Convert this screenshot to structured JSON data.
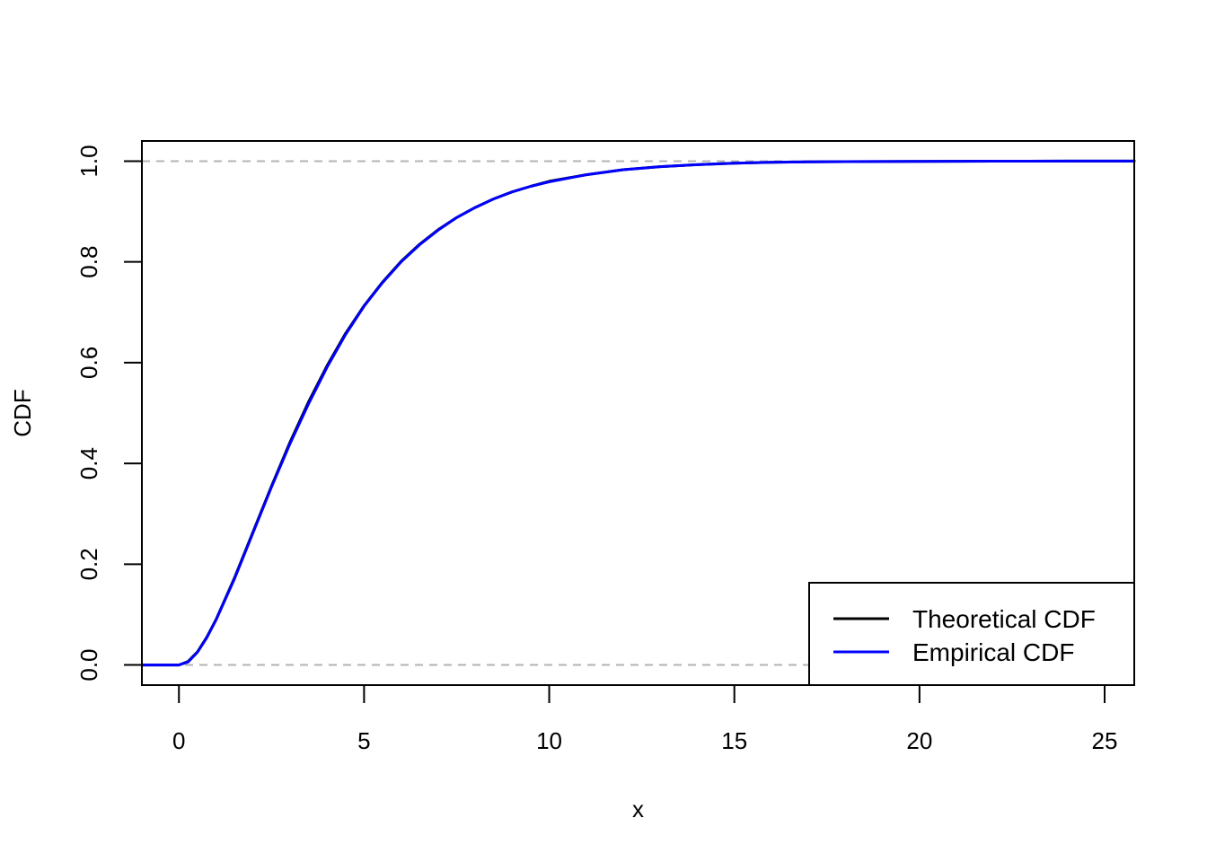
{
  "chart_data": {
    "type": "line",
    "title": "",
    "xlabel": "x",
    "ylabel": "CDF",
    "xlim": [
      -1,
      25.8
    ],
    "ylim": [
      -0.04,
      1.04
    ],
    "x_ticks": [
      "0",
      "5",
      "10",
      "15",
      "20",
      "25"
    ],
    "y_ticks": [
      "0.0",
      "0.2",
      "0.4",
      "0.6",
      "0.8",
      "1.0"
    ],
    "reference_lines": [
      0,
      1
    ],
    "grid": false,
    "legend": {
      "position": "bottom-right",
      "entries": [
        "Theoretical CDF",
        "Empirical CDF"
      ]
    },
    "x": [
      -1,
      0,
      0.25,
      0.5,
      0.75,
      1,
      1.5,
      2,
      2.5,
      3,
      3.5,
      4,
      4.5,
      5,
      5.5,
      6,
      6.5,
      7,
      7.5,
      8,
      8.5,
      9,
      9.5,
      10,
      11,
      12,
      13,
      14,
      15,
      16,
      17,
      18,
      20,
      22,
      24,
      25.8
    ],
    "series": [
      {
        "name": "Theoretical CDF",
        "color": "#000000",
        "values": [
          0,
          0,
          0.007,
          0.026,
          0.055,
          0.09,
          0.173,
          0.264,
          0.355,
          0.442,
          0.522,
          0.594,
          0.658,
          0.713,
          0.76,
          0.801,
          0.835,
          0.864,
          0.888,
          0.908,
          0.925,
          0.939,
          0.95,
          0.96,
          0.973,
          0.983,
          0.989,
          0.993,
          0.996,
          0.9975,
          0.9984,
          0.999,
          0.9996,
          0.9999,
          1.0,
          1.0
        ]
      },
      {
        "name": "Empirical CDF",
        "color": "#0000ff",
        "values": [
          0,
          0,
          0.006,
          0.025,
          0.054,
          0.089,
          0.171,
          0.262,
          0.353,
          0.439,
          0.518,
          0.591,
          0.656,
          0.712,
          0.759,
          0.8,
          0.834,
          0.863,
          0.888,
          0.908,
          0.925,
          0.939,
          0.95,
          0.959,
          0.973,
          0.983,
          0.989,
          0.993,
          0.996,
          0.9975,
          0.9984,
          0.999,
          0.9996,
          0.9999,
          1.0,
          1.0
        ]
      }
    ],
    "colors": {
      "reference_line": "#b3b3b3",
      "frame": "#000000"
    }
  }
}
